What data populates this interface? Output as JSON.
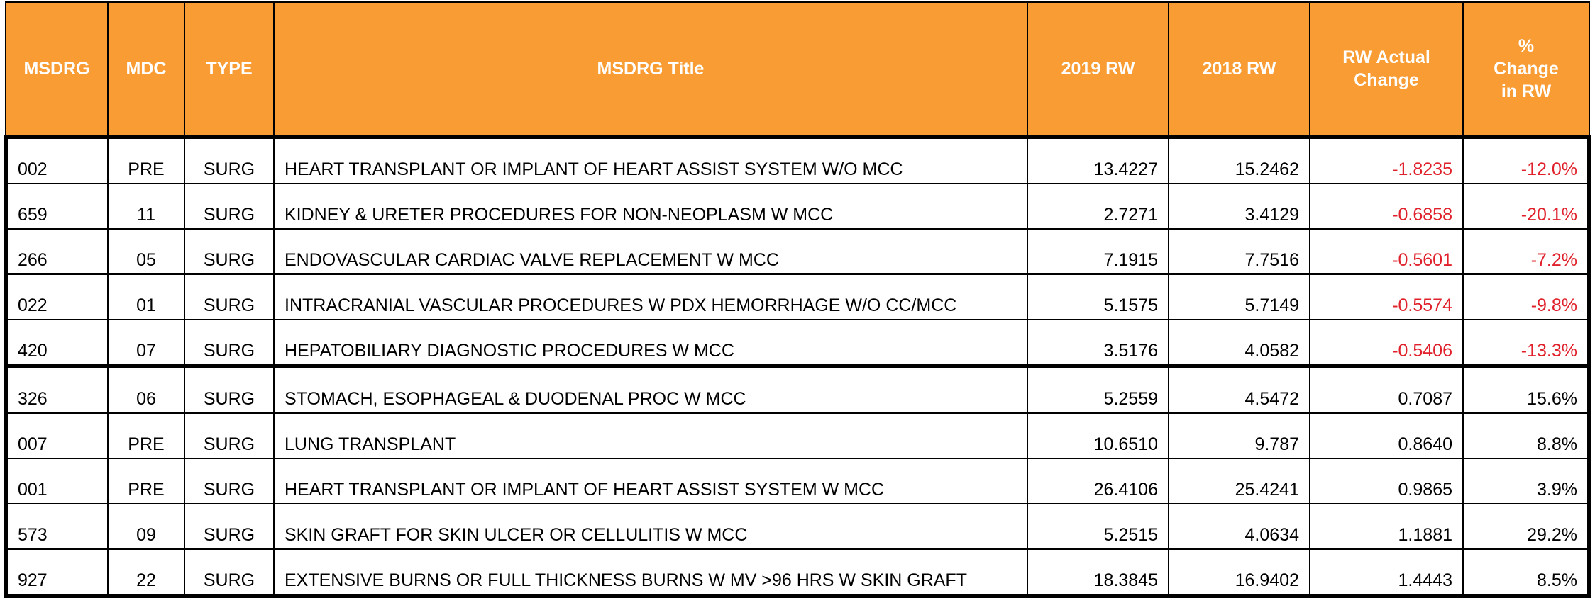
{
  "table": {
    "header_color": "#F89C33",
    "negative_color": "#E0202A",
    "columns": [
      "MSDRG",
      "MDC",
      "TYPE",
      "MSDRG Title",
      "2019 RW",
      "2018 RW",
      "RW Actual Change",
      "% Change in RW"
    ],
    "groups": [
      [
        [
          "002",
          "PRE",
          "SURG",
          "HEART TRANSPLANT OR IMPLANT OF HEART ASSIST SYSTEM W/O MCC",
          "13.4227",
          "15.2462",
          "-1.8235",
          "-12.0%"
        ],
        [
          "659",
          "11",
          "SURG",
          "KIDNEY & URETER PROCEDURES FOR NON-NEOPLASM W MCC",
          "2.7271",
          "3.4129",
          "-0.6858",
          "-20.1%"
        ],
        [
          "266",
          "05",
          "SURG",
          "ENDOVASCULAR CARDIAC VALVE REPLACEMENT W MCC",
          "7.1915",
          "7.7516",
          "-0.5601",
          "-7.2%"
        ],
        [
          "022",
          "01",
          "SURG",
          "INTRACRANIAL VASCULAR PROCEDURES W PDX HEMORRHAGE W/O CC/MCC",
          "5.1575",
          "5.7149",
          "-0.5574",
          "-9.8%"
        ],
        [
          "420",
          "07",
          "SURG",
          "HEPATOBILIARY DIAGNOSTIC PROCEDURES W MCC",
          "3.5176",
          "4.0582",
          "-0.5406",
          "-13.3%"
        ]
      ],
      [
        [
          "326",
          "06",
          "SURG",
          "STOMACH, ESOPHAGEAL & DUODENAL PROC W MCC",
          "5.2559",
          "4.5472",
          "0.7087",
          "15.6%"
        ],
        [
          "007",
          "PRE",
          "SURG",
          "LUNG TRANSPLANT",
          "10.6510",
          "9.787",
          "0.8640",
          "8.8%"
        ],
        [
          "001",
          "PRE",
          "SURG",
          "HEART TRANSPLANT OR IMPLANT OF HEART ASSIST SYSTEM W MCC",
          "26.4106",
          "25.4241",
          "0.9865",
          "3.9%"
        ],
        [
          "573",
          "09",
          "SURG",
          "SKIN GRAFT FOR SKIN ULCER OR CELLULITIS W MCC",
          "5.2515",
          "4.0634",
          "1.1881",
          "29.2%"
        ],
        [
          "927",
          "22",
          "SURG",
          "EXTENSIVE BURNS OR FULL THICKNESS BURNS W MV >96 HRS W SKIN GRAFT",
          "18.3845",
          "16.9402",
          "1.4443",
          "8.5%"
        ]
      ]
    ]
  }
}
